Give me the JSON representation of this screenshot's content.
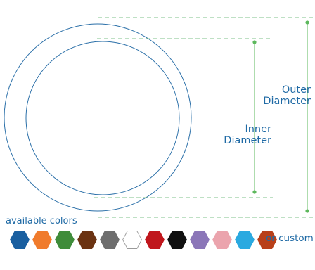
{
  "diagram": {
    "outer_label_line1": "Outer",
    "outer_label_line2": "Diameter",
    "inner_label_line1": "Inner",
    "inner_label_line2": "Diameter"
  },
  "colors_section": {
    "title": "available colors",
    "custom_label": "or custom",
    "swatches": [
      {
        "name": "blue",
        "hex": "#1a5fa0"
      },
      {
        "name": "orange",
        "hex": "#f07b2c"
      },
      {
        "name": "green",
        "hex": "#3f8c3a"
      },
      {
        "name": "brown",
        "hex": "#6b3312"
      },
      {
        "name": "gray",
        "hex": "#6e6e6e"
      },
      {
        "name": "white",
        "hex": "#ffffff"
      },
      {
        "name": "red",
        "hex": "#c0161c"
      },
      {
        "name": "black",
        "hex": "#111111"
      },
      {
        "name": "purple",
        "hex": "#8b76b8"
      },
      {
        "name": "pink",
        "hex": "#eba4ad"
      },
      {
        "name": "light-blue",
        "hex": "#2aa9e0"
      },
      {
        "name": "rust",
        "hex": "#b8401a"
      }
    ]
  }
}
